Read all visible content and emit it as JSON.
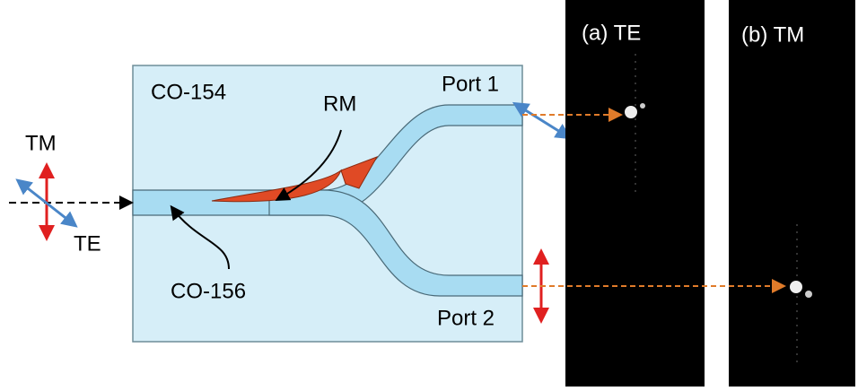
{
  "input": {
    "tm_label": "TM",
    "te_label": "TE"
  },
  "chip": {
    "material": "CO-154",
    "core": "CO-156",
    "mirror": "RM",
    "port1": "Port 1",
    "port2": "Port 2"
  },
  "images": [
    {
      "label": "(a) TE"
    },
    {
      "label": "(b) TM"
    }
  ]
}
